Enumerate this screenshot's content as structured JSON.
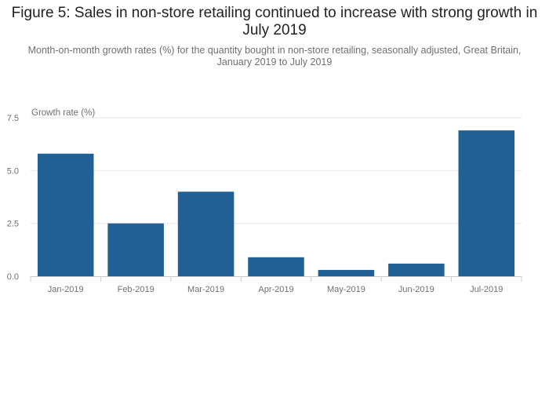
{
  "title": "Figure 5: Sales in non-store retailing continued to increase with strong growth in July 2019",
  "subtitle": "Month-on-month growth rates (%) for the quantity bought in non-store retailing, seasonally adjusted, Great Britain, January 2019 to July 2019",
  "colors": {
    "bar": "#206095",
    "grid": "#e6e6e6",
    "axis": "#cccccc",
    "text": "#707071"
  },
  "chart_data": {
    "type": "bar",
    "ylabel": "Growth rate (%)",
    "xlabel": "",
    "categories": [
      "Jan-2019",
      "Feb-2019",
      "Mar-2019",
      "Apr-2019",
      "May-2019",
      "Jun-2019",
      "Jul-2019"
    ],
    "values": [
      5.8,
      2.5,
      4.0,
      0.9,
      0.3,
      0.6,
      6.9
    ],
    "ylim": [
      0,
      7.5
    ],
    "yticks": [
      "0.0",
      "2.5",
      "5.0",
      "7.5"
    ],
    "grid": true,
    "legend": "none"
  }
}
